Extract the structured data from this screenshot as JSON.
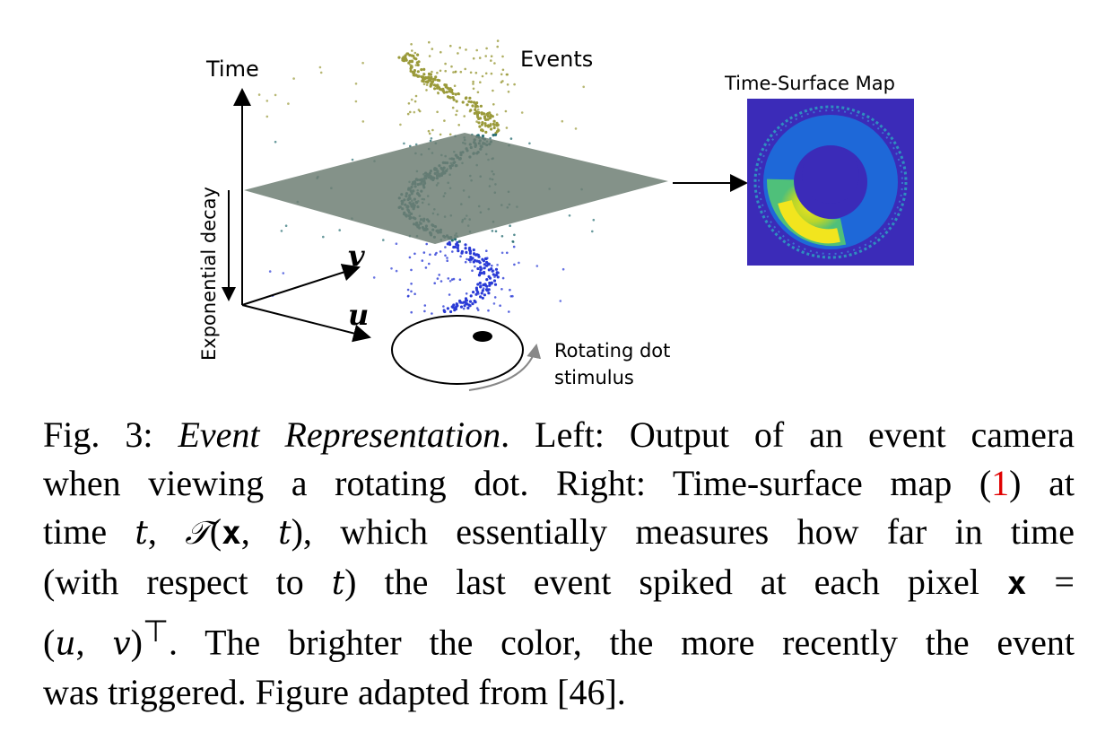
{
  "figure": {
    "time_axis_label": "Time",
    "decay_label": "Exponential decay",
    "v_label": "v",
    "u_label": "u",
    "events_label": "Events",
    "map_title": "Time-Surface Map",
    "stimulus_label_line1": "Rotating dot",
    "stimulus_label_line2": "stimulus",
    "colors": {
      "plane": "#6e7f74",
      "map_background": "#3b2bb8",
      "event_low": "#2a3bd6",
      "event_mid": "#2a6f73",
      "event_high": "#9a9a3a"
    }
  },
  "caption": {
    "fig_number": "Fig. 3:",
    "title": "Event Representation",
    "line1_rest": ". Left: Output of an event camera",
    "line2_a": "when viewing a rotating dot. Right: Time-surface map (",
    "ref": "1",
    "line2_b": ") at",
    "line3_a": "time ",
    "t1": "t",
    "line3_b": ", ",
    "T_symbol": "𝒯",
    "line3_c": "(",
    "x1": "x",
    "line3_d": ", ",
    "t2": "t",
    "line3_e": "), which essentially measures how far in time",
    "line4_a": "(with respect to ",
    "t3": "t",
    "line4_b": ") the last event spiked at each pixel ",
    "x2": "x",
    "line4_c": " =",
    "line5_a": "(",
    "u": "u",
    "line5_b": ", ",
    "v": "v",
    "line5_c": ")",
    "transpose": "⊤",
    "line5_d": ". The brighter the color, the more recently the event",
    "line6": "was triggered. Figure adapted from [46]."
  }
}
